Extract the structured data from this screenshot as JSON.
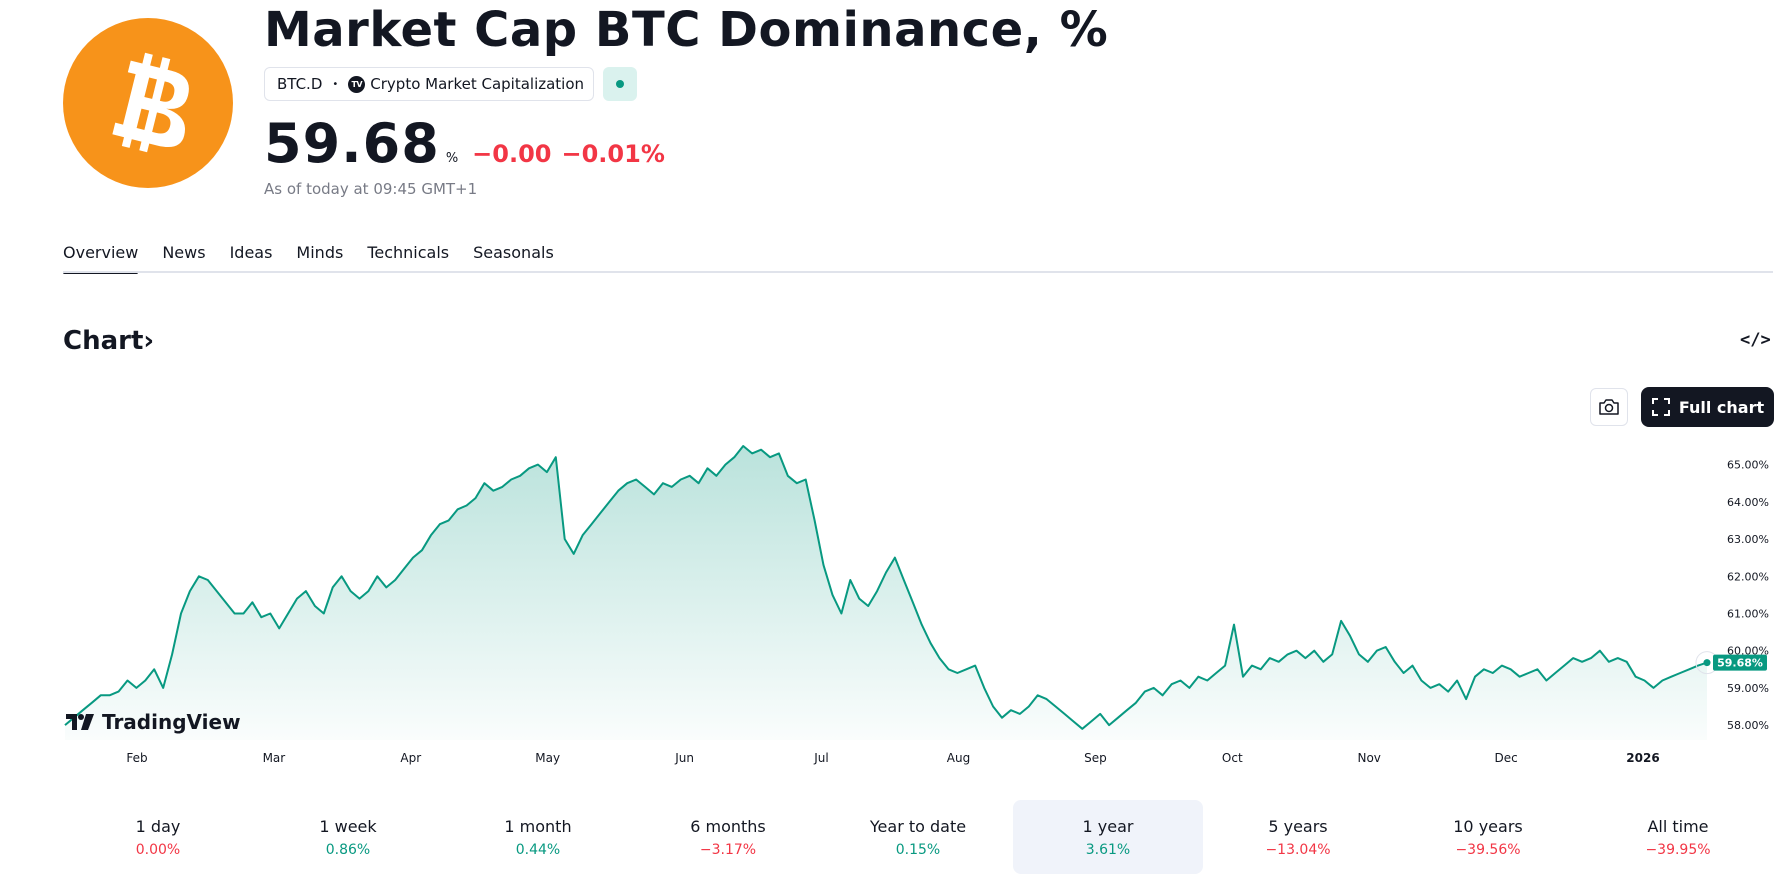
{
  "header": {
    "title": "Market Cap BTC Dominance, %",
    "symbol": "BTC.D",
    "source": "Crypto Market Capitalization",
    "price": "59.68",
    "unit": "%",
    "change": "−0.00",
    "change_pct": "−0.01%",
    "as_of": "As of today at 09:45 GMT+1"
  },
  "icons": {
    "logo": "bitcoin-logo",
    "status": "market-status-dot",
    "camera": "camera-icon",
    "fullscreen": "fullscreen-icon",
    "embed": "embed-code-icon"
  },
  "colors": {
    "accent": "#089981",
    "negative": "#f23645",
    "brand": "#f7931a"
  },
  "tabs": [
    {
      "label": "Overview",
      "active": true
    },
    {
      "label": "News"
    },
    {
      "label": "Ideas"
    },
    {
      "label": "Minds"
    },
    {
      "label": "Technicals"
    },
    {
      "label": "Seasonals"
    }
  ],
  "chart_section": {
    "heading": "Chart",
    "heading_arrow": "›",
    "embed_label": "</>",
    "full_chart_label": "Full chart",
    "brand_label": "TradingView"
  },
  "chart_data": {
    "type": "area",
    "title": "",
    "xlabel": "",
    "ylabel": "",
    "x_ticks": [
      "Feb",
      "Mar",
      "Apr",
      "May",
      "Jun",
      "Jul",
      "Aug",
      "Sep",
      "Oct",
      "Nov",
      "Dec",
      "2026"
    ],
    "y_ticks": [
      "65.00%",
      "64.00%",
      "63.00%",
      "62.00%",
      "61.00%",
      "60.00%",
      "59.00%",
      "58.00%"
    ],
    "ylim": [
      57.6,
      65.5
    ],
    "last_value_label": "59.68%",
    "grid": false,
    "series": [
      {
        "values": [
          58.0,
          58.2,
          58.4,
          58.6,
          58.8,
          58.8,
          58.9,
          59.2,
          59.0,
          59.2,
          59.5,
          59.0,
          59.9,
          61.0,
          61.6,
          62.0,
          61.9,
          61.6,
          61.3,
          61.0,
          61.0,
          61.3,
          60.9,
          61.0,
          60.6,
          61.0,
          61.4,
          61.6,
          61.2,
          61.0,
          61.7,
          62.0,
          61.6,
          61.4,
          61.6,
          62.0,
          61.7,
          61.9,
          62.2,
          62.5,
          62.7,
          63.1,
          63.4,
          63.5,
          63.8,
          63.9,
          64.1,
          64.5,
          64.3,
          64.4,
          64.6,
          64.7,
          64.9,
          65.0,
          64.8,
          65.2,
          63.0,
          62.6,
          63.1,
          63.4,
          63.7,
          64.0,
          64.3,
          64.5,
          64.6,
          64.4,
          64.2,
          64.5,
          64.4,
          64.6,
          64.7,
          64.5,
          64.9,
          64.7,
          65.0,
          65.2,
          65.5,
          65.3,
          65.4,
          65.2,
          65.3,
          64.7,
          64.5,
          64.6,
          63.5,
          62.3,
          61.5,
          61.0,
          61.9,
          61.4,
          61.2,
          61.6,
          62.1,
          62.5,
          61.9,
          61.3,
          60.7,
          60.2,
          59.8,
          59.5,
          59.4,
          59.5,
          59.6,
          59.0,
          58.5,
          58.2,
          58.4,
          58.3,
          58.5,
          58.8,
          58.7,
          58.5,
          58.3,
          58.1,
          57.9,
          58.1,
          58.3,
          58.0,
          58.2,
          58.4,
          58.6,
          58.9,
          59.0,
          58.8,
          59.1,
          59.2,
          59.0,
          59.3,
          59.2,
          59.4,
          59.6,
          60.7,
          59.3,
          59.6,
          59.5,
          59.8,
          59.7,
          59.9,
          60.0,
          59.8,
          60.0,
          59.7,
          59.9,
          60.8,
          60.4,
          59.9,
          59.7,
          60.0,
          60.1,
          59.7,
          59.4,
          59.6,
          59.2,
          59.0,
          59.1,
          58.9,
          59.2,
          58.7,
          59.3,
          59.5,
          59.4,
          59.6,
          59.5,
          59.3,
          59.4,
          59.5,
          59.2,
          59.4,
          59.6,
          59.8,
          59.7,
          59.8,
          60.0,
          59.7,
          59.8,
          59.7,
          59.3,
          59.2,
          59.0,
          59.2,
          59.3,
          59.4,
          59.5,
          59.6,
          59.68
        ]
      }
    ]
  },
  "ranges": [
    {
      "label": "1 day",
      "value": "0.00%",
      "dir": "down"
    },
    {
      "label": "1 week",
      "value": "0.86%",
      "dir": "up"
    },
    {
      "label": "1 month",
      "value": "0.44%",
      "dir": "up"
    },
    {
      "label": "6 months",
      "value": "−3.17%",
      "dir": "down"
    },
    {
      "label": "Year to date",
      "value": "0.15%",
      "dir": "up"
    },
    {
      "label": "1 year",
      "value": "3.61%",
      "dir": "up",
      "active": true
    },
    {
      "label": "5 years",
      "value": "−13.04%",
      "dir": "down"
    },
    {
      "label": "10 years",
      "value": "−39.56%",
      "dir": "down"
    },
    {
      "label": "All time",
      "value": "−39.95%",
      "dir": "down"
    }
  ]
}
